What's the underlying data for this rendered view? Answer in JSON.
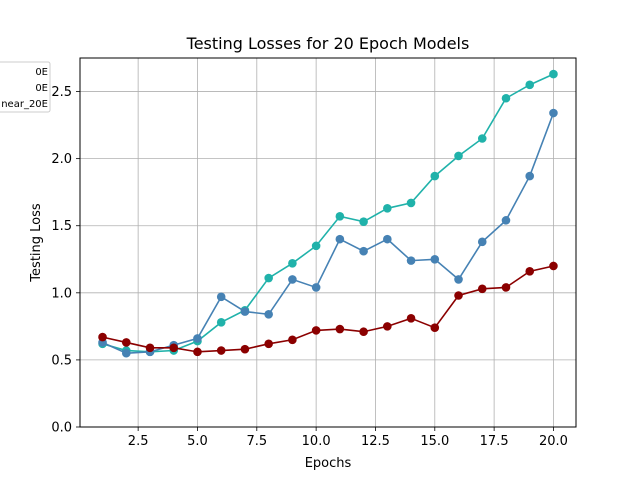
{
  "chart_data": {
    "type": "line",
    "title": "Testing Losses for 20 Epoch Models",
    "xlabel": "Epochs",
    "ylabel": "Testing Loss",
    "xlim": [
      0.05,
      20.95
    ],
    "ylim": [
      0,
      2.75
    ],
    "xticks": [
      2.5,
      5.0,
      7.5,
      10.0,
      12.5,
      15.0,
      17.5,
      20.0
    ],
    "xtick_labels": [
      "2.5",
      "5.0",
      "7.5",
      "10.0",
      "12.5",
      "15.0",
      "17.5",
      "20.0"
    ],
    "yticks": [
      0.0,
      0.5,
      1.0,
      1.5,
      2.0,
      2.5
    ],
    "ytick_labels": [
      "0.0",
      "0.5",
      "1.0",
      "1.5",
      "2.0",
      "2.5"
    ],
    "grid": true,
    "legend_position": "upper-left (clipped)",
    "x": [
      1,
      2,
      3,
      4,
      5,
      6,
      7,
      8,
      9,
      10,
      11,
      12,
      13,
      14,
      15,
      16,
      17,
      18,
      19,
      20
    ],
    "series": [
      {
        "name": "0E",
        "color": "#20b2aa",
        "values": [
          0.62,
          0.57,
          0.56,
          0.57,
          0.64,
          0.78,
          0.87,
          1.11,
          1.22,
          1.35,
          1.57,
          1.53,
          1.63,
          1.67,
          1.87,
          2.02,
          2.15,
          2.45,
          2.55,
          2.63
        ]
      },
      {
        "name": "0E",
        "color": "#4682b4",
        "values": [
          0.63,
          0.55,
          0.56,
          0.61,
          0.66,
          0.97,
          0.86,
          0.84,
          1.1,
          1.04,
          1.4,
          1.31,
          1.4,
          1.24,
          1.25,
          1.1,
          1.38,
          1.54,
          1.87,
          2.34
        ]
      },
      {
        "name": "near_20E",
        "color": "#8b0000",
        "values": [
          0.67,
          0.63,
          0.59,
          0.59,
          0.56,
          0.57,
          0.58,
          0.62,
          0.65,
          0.72,
          0.73,
          0.71,
          0.75,
          0.81,
          0.74,
          0.98,
          1.03,
          1.04,
          1.16,
          1.2
        ]
      }
    ]
  }
}
